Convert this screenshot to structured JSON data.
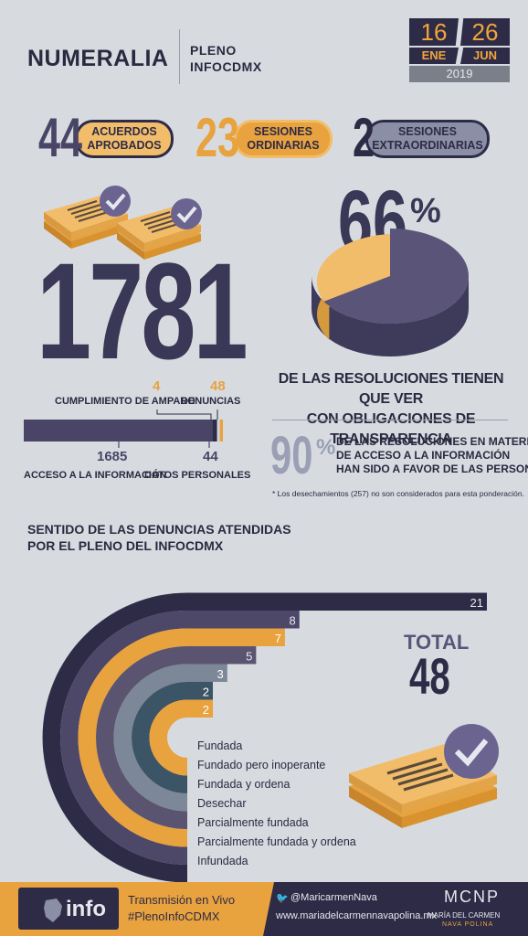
{
  "header": {
    "title": "NUMERALIA",
    "subtitle_line1": "PLENO",
    "subtitle_line2": "INFOCDMX",
    "date_start_day": "16",
    "date_start_month": "ENE",
    "date_end_day": "26",
    "date_end_month": "JUN",
    "year": "2019"
  },
  "stats": [
    {
      "number": "44",
      "line1": "ACUERDOS",
      "line2": "APROBADOS"
    },
    {
      "number": "23",
      "line1": "SESIONES",
      "line2": "ORDINARIAS"
    },
    {
      "number": "2",
      "line1": "SESIONES",
      "line2": "EXTRAORDINARIAS"
    }
  ],
  "total_resolutions": {
    "value": "1781",
    "cumplimiento_value": "4",
    "cumplimiento_label": "CUMPLIMIENTO DE AMPARO",
    "denuncias_value": "48",
    "denuncias_label": "DENUNCIAS",
    "acceso_value": "1685",
    "acceso_label": "ACCESO A LA INFORMACIÓN",
    "datos_value": "44",
    "datos_label": "DATOS PERSONALES"
  },
  "transparency": {
    "percent": "66",
    "percent_sign": "%",
    "line1": "DE LAS RESOLUCIONES TIENEN QUE VER",
    "line2": "CON OBLIGACIONES DE TRANSPARENCIA"
  },
  "favor": {
    "percent": "90",
    "percent_sign": "%",
    "line1": "DE LAS RESOLUCIONES EN MATERIA",
    "line2": "DE ACCESO A LA INFORMACIÓN",
    "line3": "HAN SIDO A FAVOR DE LAS PERSONAS*",
    "footnote": "* Los desechamientos (257) no son considerados para esta ponderación."
  },
  "denuncias_section": {
    "title_line1": "SENTIDO DE LAS DENUNCIAS ATENDIDAS",
    "title_line2": "POR EL PLENO DEL INFOCDMX",
    "total_label": "TOTAL",
    "total_value": "48"
  },
  "chart_data": {
    "type": "bar",
    "title": "SENTIDO DE LAS DENUNCIAS ATENDIDAS POR EL PLENO DEL INFOCDMX",
    "categories": [
      "Fundada",
      "Fundado pero inoperante",
      "Fundada y ordena",
      "Desechar",
      "Parcialmente fundada",
      "Parcialmente fundada y ordena",
      "Infundada"
    ],
    "values": [
      2,
      2,
      3,
      5,
      7,
      8,
      21
    ],
    "colors": [
      "#e8a23e",
      "#3b5566",
      "#7c8797",
      "#5a5470",
      "#e8a23e",
      "#4d4768",
      "#2e2b47"
    ]
  },
  "pie_data": {
    "values": [
      66,
      34
    ],
    "colors": [
      "#5a5478",
      "#f2bd6a"
    ]
  },
  "breakdown_bar": {
    "values": [
      1685,
      44,
      4,
      48
    ],
    "colors": [
      "#4a4566",
      "#2e2b47",
      "#cfd3da",
      "#e8a23e"
    ]
  },
  "footer": {
    "logo_text": "info",
    "live_line1": "Transmisión en Vivo",
    "live_line2": "#PlenoInfoCDMX",
    "twitter": "@MaricarmenNava",
    "website": "www.mariadelcarmennavapolina.mx",
    "brand_mark": "MCNP",
    "brand_name": "MARÍA DEL CARMEN",
    "brand_surname": "NAVA POLINA"
  },
  "colors": {
    "navy": "#2e2b47",
    "orange": "#e8a23e",
    "background": "#d7dbe0",
    "purple": "#5a5478"
  }
}
